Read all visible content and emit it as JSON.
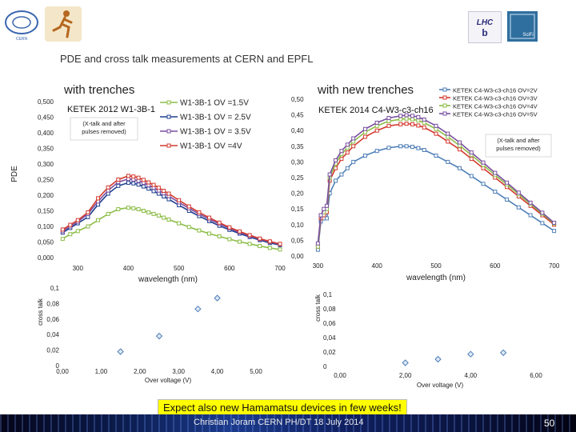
{
  "title": "PDE and cross talk measurements at CERN and EPFL",
  "headings": {
    "left": "with trenches",
    "right": "with new trenches"
  },
  "y_axis_label": "PDE",
  "announcement": "Expect also new Hamamatsu devices in few weeks!",
  "footer": {
    "text": "Christian Joram   CERN   PH/DT         18 July 2014",
    "page": "50"
  },
  "logos": {
    "left": "CERN logo",
    "right": "LHCb",
    "right2": "SciFi"
  },
  "chart_data": [
    {
      "id": "pde-left",
      "type": "line",
      "title": "KETEK 2012 W1-3B-1",
      "annotation": "(X-talk and after pulses removed)",
      "xlabel": "wavelength (nm)",
      "xlim": [
        260,
        700
      ],
      "ylim": [
        0,
        0.5
      ],
      "xticks": [
        300,
        400,
        500,
        600,
        700
      ],
      "yticks": [
        0,
        0.05,
        0.1,
        0.15,
        0.2,
        0.25,
        0.3,
        0.35,
        0.4,
        0.45,
        0.5
      ],
      "ytick_labels": [
        "0,000",
        "0,050",
        "0,100",
        "0,150",
        "0,200",
        "0,250",
        "0,300",
        "0,350",
        "0,400",
        "0,450",
        "0,500"
      ],
      "x": [
        270,
        285,
        300,
        320,
        340,
        360,
        380,
        400,
        410,
        420,
        430,
        440,
        450,
        460,
        470,
        480,
        500,
        520,
        540,
        560,
        580,
        600,
        620,
        640,
        660,
        680,
        700
      ],
      "series": [
        {
          "name": "W1-3B-1 OV =1.5V",
          "color": "#8dbd48",
          "values": [
            0.06,
            0.075,
            0.085,
            0.1,
            0.12,
            0.14,
            0.155,
            0.16,
            0.158,
            0.155,
            0.15,
            0.145,
            0.14,
            0.135,
            0.128,
            0.122,
            0.11,
            0.098,
            0.087,
            0.077,
            0.068,
            0.059,
            0.051,
            0.044,
            0.037,
            0.031,
            0.026
          ]
        },
        {
          "name": "W1-3B-1 OV = 2.5V",
          "color": "#1f3f8f",
          "values": [
            0.08,
            0.095,
            0.11,
            0.13,
            0.17,
            0.205,
            0.23,
            0.24,
            0.238,
            0.234,
            0.228,
            0.221,
            0.213,
            0.205,
            0.196,
            0.187,
            0.168,
            0.15,
            0.133,
            0.117,
            0.102,
            0.089,
            0.077,
            0.066,
            0.056,
            0.047,
            0.04
          ]
        },
        {
          "name": "W1-3B-1 OV = 3.5V",
          "color": "#7a4fa0",
          "values": [
            0.085,
            0.1,
            0.115,
            0.14,
            0.18,
            0.215,
            0.242,
            0.252,
            0.25,
            0.246,
            0.24,
            0.232,
            0.224,
            0.215,
            0.206,
            0.197,
            0.177,
            0.158,
            0.14,
            0.123,
            0.108,
            0.094,
            0.081,
            0.069,
            0.059,
            0.05,
            0.042
          ]
        },
        {
          "name": "W1-3B-1 OV =4V",
          "color": "#d43a2f",
          "values": [
            0.09,
            0.105,
            0.12,
            0.145,
            0.19,
            0.225,
            0.25,
            0.262,
            0.26,
            0.256,
            0.249,
            0.241,
            0.233,
            0.224,
            0.214,
            0.205,
            0.184,
            0.164,
            0.145,
            0.128,
            0.112,
            0.097,
            0.084,
            0.072,
            0.061,
            0.052,
            0.044
          ]
        }
      ]
    },
    {
      "id": "pde-right",
      "type": "line",
      "title": "KETEK 2014  C4-W3-c3-ch16",
      "annotation": "(X-talk and after pulses removed)",
      "xlabel": "wavelength (nm)",
      "xlim": [
        290,
        710
      ],
      "ylim": [
        0,
        0.5
      ],
      "xticks": [
        300,
        400,
        500,
        600,
        700
      ],
      "yticks": [
        0,
        0.05,
        0.1,
        0.15,
        0.2,
        0.25,
        0.3,
        0.35,
        0.4,
        0.45,
        0.5
      ],
      "ytick_labels": [
        "0,00",
        "0,05",
        "0,10",
        "0,15",
        "0,20",
        "0,25",
        "0,30",
        "0,35",
        "0,40",
        "0,45",
        "0,50"
      ],
      "x": [
        300,
        305,
        310,
        315,
        320,
        330,
        340,
        350,
        360,
        380,
        400,
        420,
        440,
        450,
        460,
        470,
        480,
        500,
        520,
        540,
        560,
        580,
        600,
        620,
        640,
        660,
        680,
        700
      ],
      "series": [
        {
          "name": "KETEK C4-W3-c3-ch16 OV=2V",
          "color": "#4f7fb8",
          "values": [
            0.02,
            0.11,
            0.12,
            0.12,
            0.2,
            0.24,
            0.26,
            0.28,
            0.3,
            0.32,
            0.335,
            0.345,
            0.35,
            0.35,
            0.348,
            0.344,
            0.338,
            0.32,
            0.3,
            0.28,
            0.255,
            0.23,
            0.205,
            0.18,
            0.155,
            0.13,
            0.105,
            0.08
          ]
        },
        {
          "name": "KETEK C4-W3-c3-ch16 OV=3V",
          "color": "#d43a2f",
          "values": [
            0.03,
            0.12,
            0.13,
            0.14,
            0.24,
            0.28,
            0.31,
            0.33,
            0.35,
            0.38,
            0.4,
            0.415,
            0.42,
            0.422,
            0.42,
            0.416,
            0.41,
            0.39,
            0.365,
            0.34,
            0.31,
            0.28,
            0.25,
            0.22,
            0.19,
            0.16,
            0.13,
            0.1
          ]
        },
        {
          "name": "KETEK C4-W3-c3-ch16 OV=4V",
          "color": "#8dbd48",
          "values": [
            0.03,
            0.13,
            0.14,
            0.15,
            0.25,
            0.295,
            0.325,
            0.345,
            0.365,
            0.395,
            0.415,
            0.43,
            0.436,
            0.438,
            0.436,
            0.432,
            0.425,
            0.405,
            0.38,
            0.352,
            0.322,
            0.29,
            0.258,
            0.228,
            0.197,
            0.166,
            0.135,
            0.104
          ]
        },
        {
          "name": "KETEK C4-W3-c3-ch16 OV=5V",
          "color": "#7a4fa0",
          "values": [
            0.04,
            0.13,
            0.15,
            0.16,
            0.26,
            0.305,
            0.335,
            0.355,
            0.375,
            0.405,
            0.425,
            0.44,
            0.447,
            0.449,
            0.447,
            0.443,
            0.435,
            0.415,
            0.39,
            0.362,
            0.33,
            0.298,
            0.265,
            0.234,
            0.202,
            0.17,
            0.138,
            0.106
          ]
        }
      ]
    },
    {
      "id": "xtalk-left",
      "type": "scatter",
      "xlabel": "Over voltage (V)",
      "ylabel": "cross talk",
      "xlim": [
        0,
        5
      ],
      "ylim": [
        0,
        0.1
      ],
      "xticks": [
        0,
        1,
        2,
        3,
        4,
        5
      ],
      "xtick_labels": [
        "0,00",
        "1,00",
        "2,00",
        "3,00",
        "4,00",
        "5,00"
      ],
      "yticks": [
        0,
        0.02,
        0.04,
        0.06,
        0.08,
        0.1
      ],
      "ytick_labels": [
        "0",
        "0,02",
        "0,04",
        "0,06",
        "0,08",
        "0,1"
      ],
      "color": "#4f7fb8",
      "x": [
        1.5,
        2.5,
        3.5,
        4.0
      ],
      "y": [
        0.018,
        0.038,
        0.073,
        0.087
      ]
    },
    {
      "id": "xtalk-right",
      "type": "scatter",
      "xlabel": "Over voltage (V)",
      "ylabel": "cross talk",
      "xlim": [
        0,
        6
      ],
      "ylim": [
        0,
        0.1
      ],
      "xticks": [
        0,
        2,
        4,
        6
      ],
      "xtick_labels": [
        "0,00",
        "2,00",
        "4,00",
        "6,00"
      ],
      "yticks": [
        0,
        0.02,
        0.04,
        0.06,
        0.08,
        0.1
      ],
      "ytick_labels": [
        "0",
        "0,02",
        "0,04",
        "0,06",
        "0,08",
        "0,1"
      ],
      "color": "#4f7fb8",
      "x": [
        2,
        3,
        4,
        5
      ],
      "y": [
        0.005,
        0.01,
        0.017,
        0.019
      ]
    }
  ]
}
